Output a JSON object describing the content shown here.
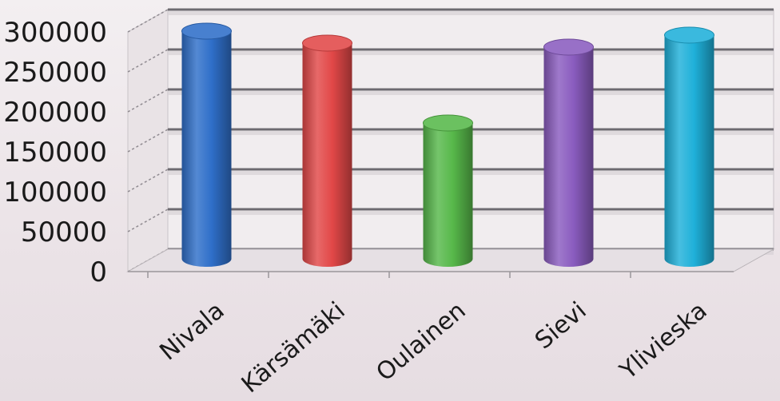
{
  "chart_data": {
    "type": "bar",
    "style": "3d-cylinder",
    "title": "",
    "xlabel": "",
    "ylabel": "",
    "categories": [
      "Nivala",
      "Kärsämäki",
      "Oulainen",
      "Sievi",
      "Ylivieska"
    ],
    "values": [
      285000,
      270000,
      170000,
      265000,
      280000
    ],
    "bar_colors": [
      "#2f6fc9",
      "#e24848",
      "#57b84a",
      "#8a5cbf",
      "#1fb0d9"
    ],
    "yticks": [
      "0",
      "50000",
      "100000",
      "150000",
      "200000",
      "250000",
      "300000"
    ],
    "ylim": [
      0,
      300000
    ],
    "grid": true,
    "legend": "none"
  }
}
